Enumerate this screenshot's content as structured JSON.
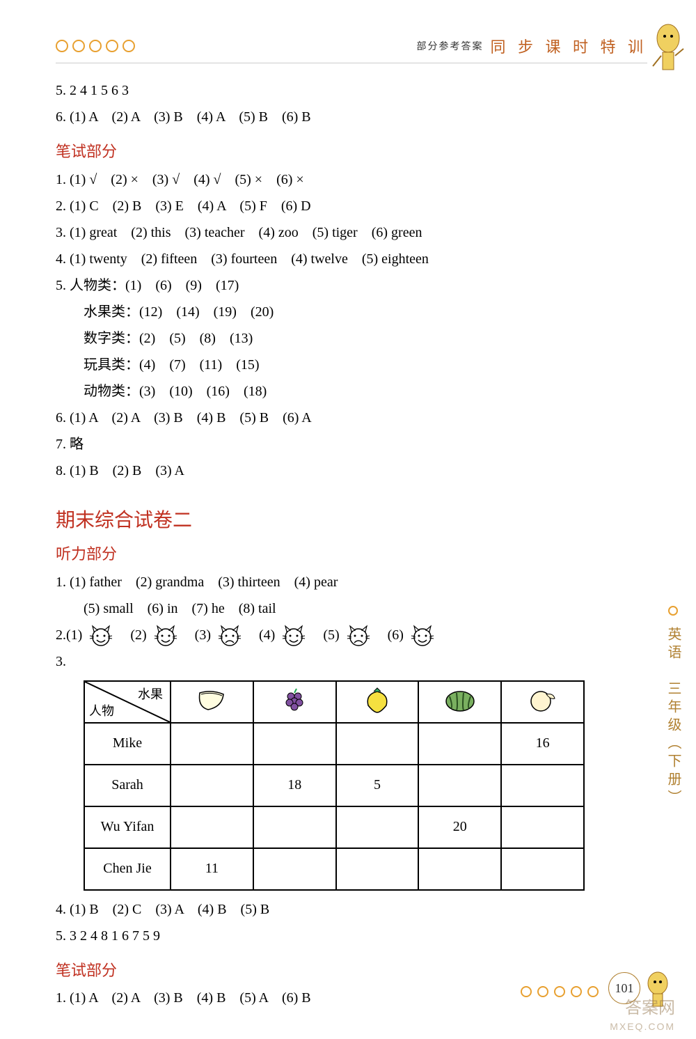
{
  "header": {
    "subtitle": "部分参考答案",
    "title": "同 步 课 时 特 训"
  },
  "top_block": {
    "l5": "5. 2 4 1 5 6 3",
    "l6": "6. (1) A　(2) A　(3) B　(4) A　(5) B　(6) B"
  },
  "written1_title": "笔试部分",
  "written1": {
    "l1": "1. (1) √　(2) ×　(3) √　(4) √　(5) ×　(6) ×",
    "l2": "2. (1) C　(2) B　(3) E　(4) A　(5) F　(6) D",
    "l3": "3. (1) great　(2) this　(3) teacher　(4) zoo　(5) tiger　(6) green",
    "l4": "4. (1) twenty　(2) fifteen　(3) fourteen　(4) twelve　(5) eighteen",
    "l5a": "5. 人物类：(1)　(6)　(9)　(17)",
    "l5b": "水果类：(12)　(14)　(19)　(20)",
    "l5c": "数字类：(2)　(5)　(8)　(13)",
    "l5d": "玩具类：(4)　(7)　(11)　(15)",
    "l5e": "动物类：(3)　(10)　(16)　(18)",
    "l6": "6. (1) A　(2) A　(3) B　(4) B　(5) B　(6) A",
    "l7": "7. 略",
    "l8": "8. (1) B　(2) B　(3) A"
  },
  "exam2_title": "期末综合试卷二",
  "listening_title": "听力部分",
  "listening": {
    "l1a": "1. (1) father　(2) grandma　(3) thirteen　(4) pear",
    "l1b": "(5) small　(6) in　(7) he　(8) tail",
    "l2_prefix": "2. ",
    "l2_items": [
      "(1)",
      "(2)",
      "(3)",
      "(4)",
      "(5)",
      "(6)"
    ],
    "l2_faces": [
      "happy",
      "happy",
      "sad",
      "happy",
      "sad",
      "happy"
    ],
    "l3_prefix": "3.",
    "l4": "4. (1) B　(2) C　(3) A　(4) B　(5) B",
    "l5": "5. 3 2 4 8 1 6 7 5 9"
  },
  "table": {
    "diag_top": "水果",
    "diag_bot": "人物",
    "fruit_icons": [
      "banana",
      "grapes",
      "strawberry",
      "watermelon",
      "orange"
    ],
    "rows": [
      {
        "name": "Mike",
        "cells": [
          "",
          "",
          "",
          "",
          "16"
        ]
      },
      {
        "name": "Sarah",
        "cells": [
          "",
          "18",
          "5",
          "",
          ""
        ]
      },
      {
        "name": "Wu Yifan",
        "cells": [
          "",
          "",
          "",
          "20",
          ""
        ]
      },
      {
        "name": "Chen Jie",
        "cells": [
          "11",
          "",
          "",
          "",
          ""
        ]
      }
    ]
  },
  "written2_title": "笔试部分",
  "written2": {
    "l1": "1. (1) A　(2) A　(3) B　(4) B　(5) A　(6) B"
  },
  "side_label": "英语　三年级（下册）",
  "page_number": "101",
  "watermark": "答案网",
  "watermark_sub": "MXEQ.COM",
  "colors": {
    "accent_orange": "#e8a030",
    "title_red": "#c03020",
    "text": "#000000"
  }
}
